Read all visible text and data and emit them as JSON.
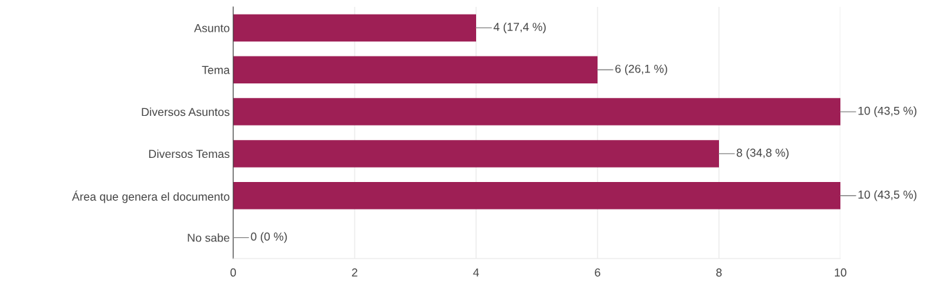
{
  "chart_data": {
    "type": "bar",
    "orientation": "horizontal",
    "categories": [
      "Asunto",
      "Tema",
      "Diversos Asuntos",
      "Diversos Temas",
      "Área que genera el documento",
      "No sabe"
    ],
    "values": [
      4,
      6,
      10,
      8,
      10,
      0
    ],
    "value_labels": [
      "4 (17,4 %)",
      "6 (26,1 %)",
      "10 (43,5 %)",
      "8 (34,8 %)",
      "10 (43,5 %)",
      "0 (0 %)"
    ],
    "color": "#9e1f55",
    "xlim": [
      0,
      10
    ],
    "xticks": [
      0,
      2,
      4,
      6,
      8,
      10
    ],
    "grid": "x",
    "legend": false
  }
}
